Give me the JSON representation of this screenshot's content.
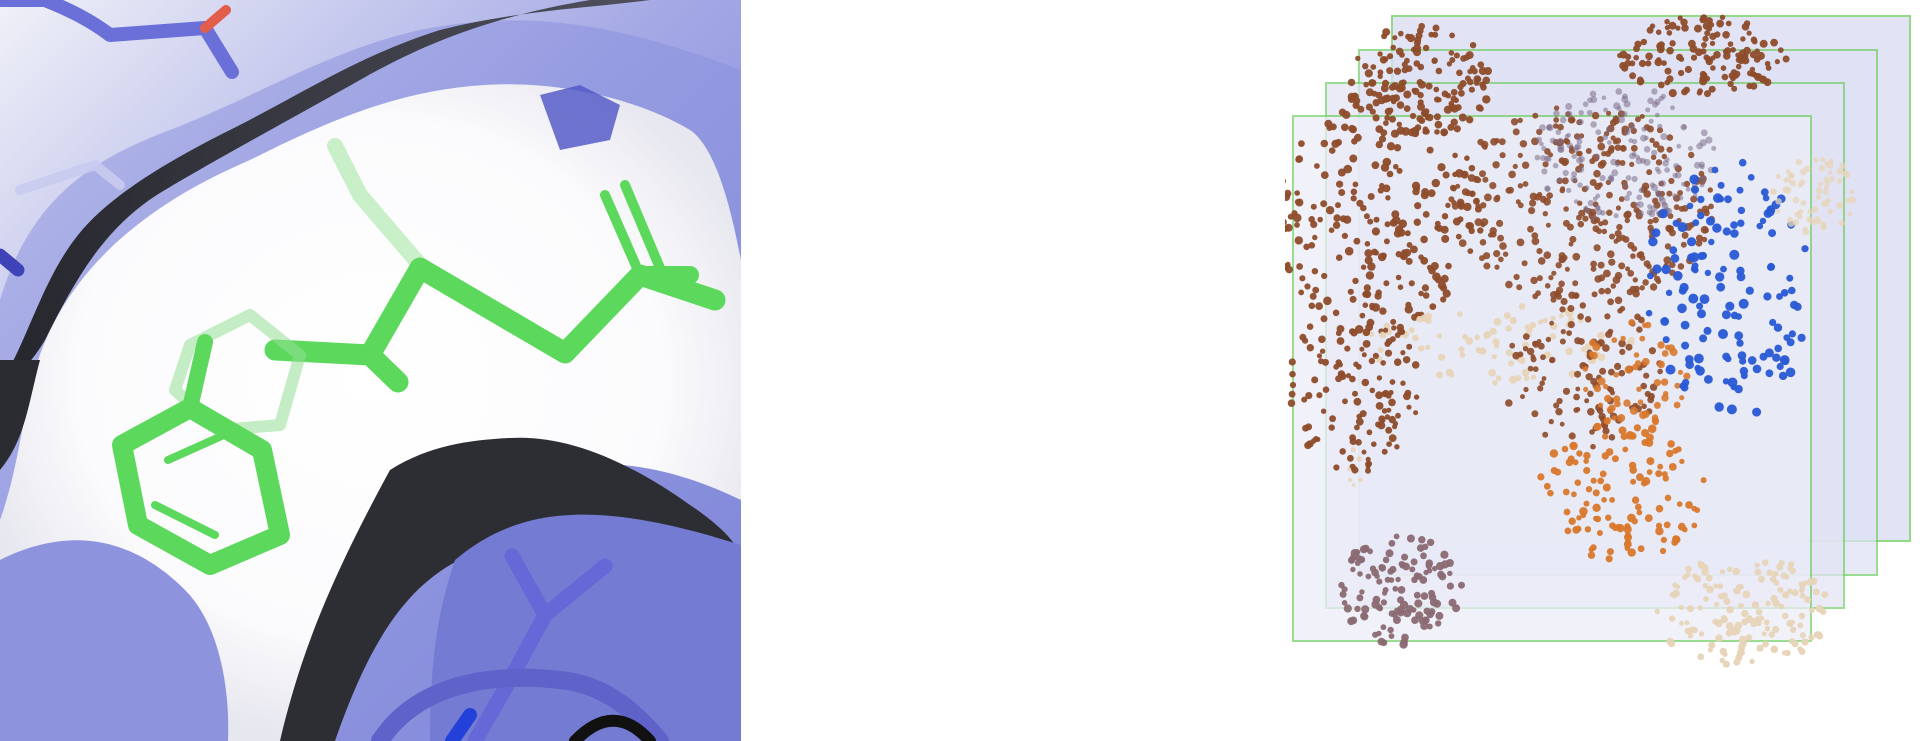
{
  "figure": {
    "panels": [
      {
        "id": "left",
        "subject": "protein-binding-pocket-with-ligand",
        "colors": {
          "surface_blue": "#7f86d8",
          "surface_dark": "#2f3033",
          "surface_white": "#f7f7f7",
          "ligand_green": "#59d85a",
          "residue_blue": "#6368d7",
          "oxygen_red": "#d84a3a"
        }
      },
      {
        "id": "right",
        "subject": "stacked-grid-boxes-with-sphere-clusters",
        "colors": {
          "box_fill": "#dcdff1",
          "box_stroke": "#6fcf64",
          "brown": "#8e4c2b",
          "orange": "#d9782c",
          "blue": "#2b5ad4",
          "cream": "#e7d4b8",
          "mauve": "#8b6a73"
        }
      }
    ]
  }
}
